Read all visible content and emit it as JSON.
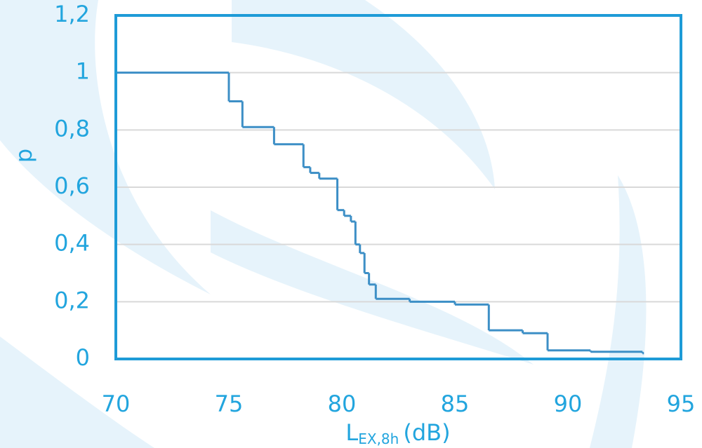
{
  "chart_data": {
    "type": "step",
    "y_label": "p",
    "x_label": {
      "main": "L",
      "sub": "EX,8h",
      "unit": "(dB)"
    },
    "x": [
      70,
      75.0,
      75.6,
      77.0,
      78.3,
      78.6,
      79.0,
      79.8,
      80.1,
      80.4,
      80.6,
      80.8,
      81.0,
      81.2,
      81.5,
      83.0,
      85.0,
      86.5,
      88.0,
      89.1,
      91.0,
      93.3
    ],
    "series": [
      {
        "color": "#3d8fc6",
        "values": [
          1,
          0.9,
          0.81,
          0.75,
          0.67,
          0.65,
          0.63,
          0.52,
          0.5,
          0.48,
          0.4,
          0.37,
          0.3,
          0.26,
          0.21,
          0.2,
          0.19,
          0.1,
          0.09,
          0.03,
          0.025,
          0.02
        ]
      }
    ],
    "xlim": [
      70,
      95
    ],
    "xticks": [
      70,
      75,
      80,
      85,
      90,
      95
    ],
    "ylim": [
      0,
      1.2
    ],
    "yticks": [
      0,
      {
        "value": 0.2,
        "label": "0,2"
      },
      {
        "value": 0.4,
        "label": "0,4"
      },
      {
        "value": 0.6,
        "label": "0,6"
      },
      {
        "value": 0.8,
        "label": "0,8"
      },
      1,
      {
        "value": 1.2,
        "label": "1,2"
      }
    ],
    "grid": true
  }
}
